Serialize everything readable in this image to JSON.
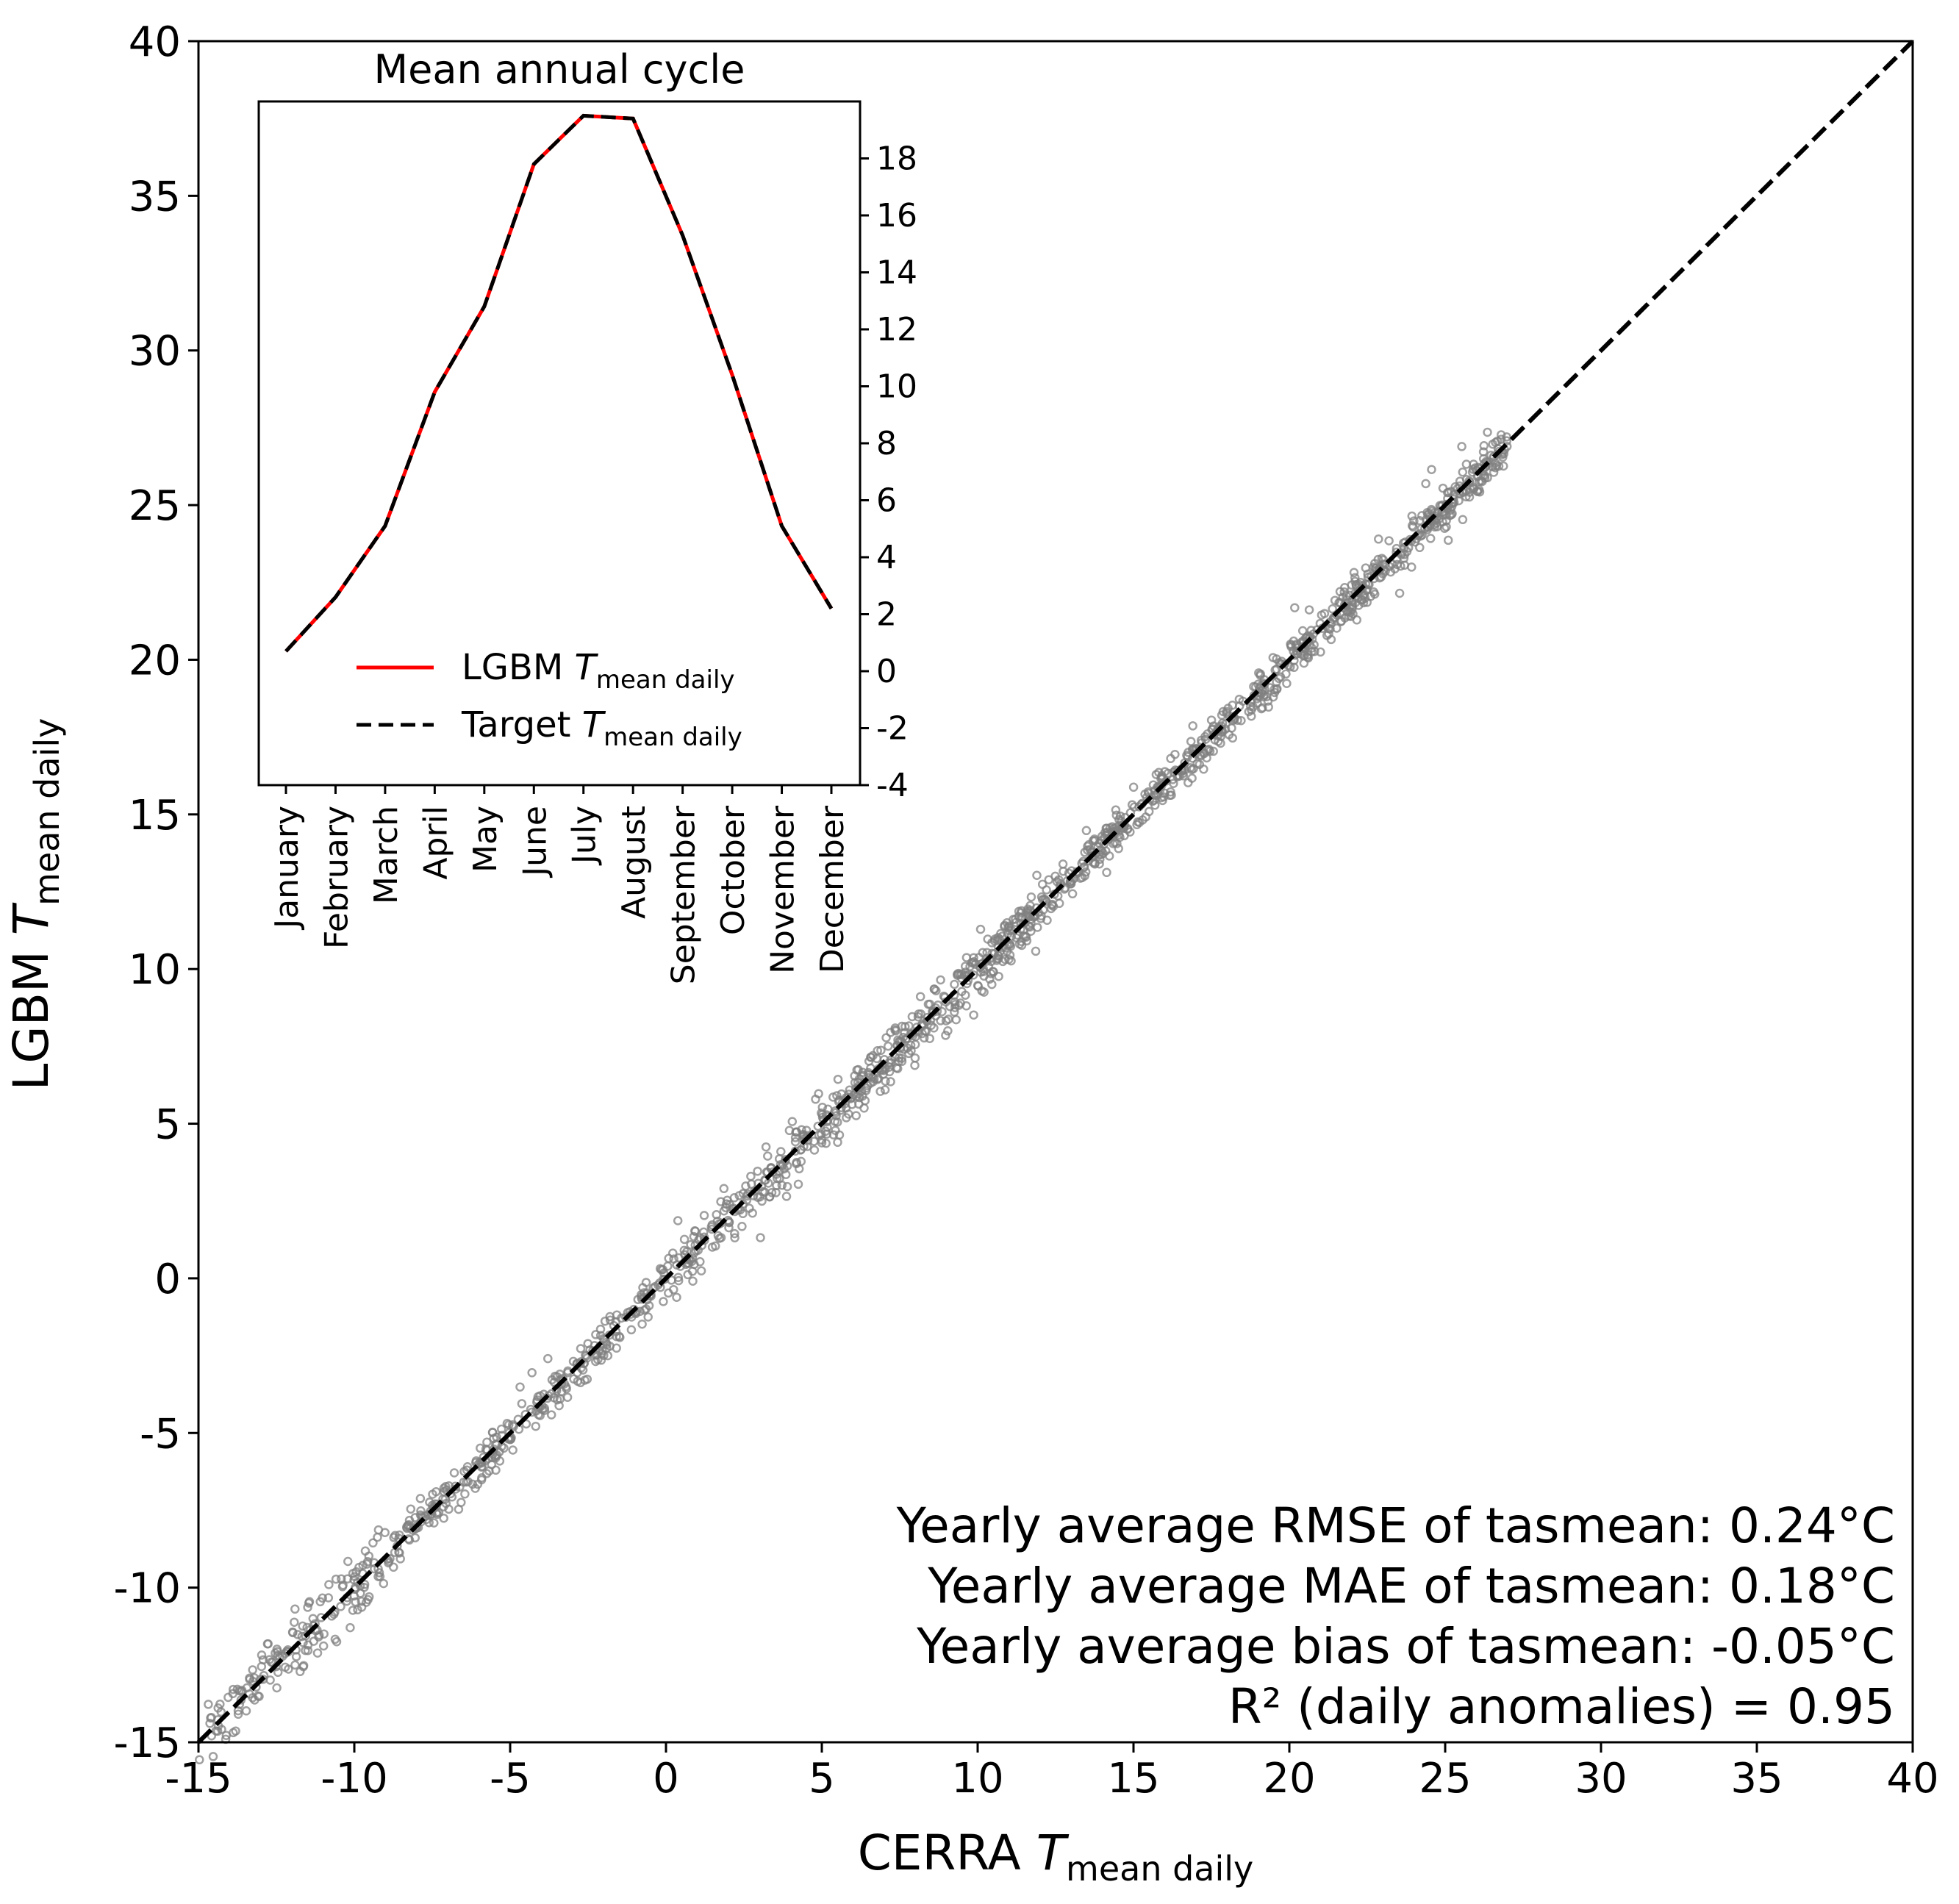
{
  "chart_data": [
    {
      "type": "scatter",
      "title": "",
      "xlabel": {
        "main": "CERRA ",
        "var": "T",
        "sub": "mean daily"
      },
      "ylabel": {
        "main": "LGBM ",
        "var": "T",
        "sub": "mean daily"
      },
      "xlim": [
        -15,
        40
      ],
      "ylim": [
        -15,
        40
      ],
      "xticks": [
        -15,
        -10,
        -5,
        0,
        5,
        10,
        15,
        20,
        25,
        30,
        35,
        40
      ],
      "yticks": [
        -15,
        -10,
        -5,
        0,
        5,
        10,
        15,
        20,
        25,
        30,
        35,
        40
      ],
      "xtick_labels": [
        "-15",
        "-10",
        "-5",
        "0",
        "5",
        "10",
        "15",
        "20",
        "25",
        "30",
        "35",
        "40"
      ],
      "ytick_labels": [
        "-15",
        "-10",
        "-5",
        "0",
        "5",
        "10",
        "15",
        "20",
        "25",
        "30",
        "35",
        "40"
      ],
      "point_color": "#808080",
      "scatter_range": [
        -15,
        27
      ],
      "points_shown": 1600,
      "identity_line": {
        "from": [
          -15,
          -15
        ],
        "to": [
          40,
          40
        ],
        "style": "dashed",
        "color": "#000000"
      },
      "annotations": [
        "Yearly average RMSE of tasmean: 0.24°C",
        "Yearly average MAE of tasmean: 0.18°C",
        "Yearly average bias of tasmean: -0.05°C",
        "R² (daily anomalies) = 0.95"
      ]
    },
    {
      "type": "line",
      "title": "Mean annual cycle",
      "categories": [
        "January",
        "February",
        "March",
        "April",
        "May",
        "June",
        "July",
        "August",
        "September",
        "October",
        "November",
        "December"
      ],
      "series": [
        {
          "name": "LGBM T mean daily",
          "color": "#ff0000",
          "style": "solid",
          "values": [
            0.7,
            2.6,
            5.1,
            9.8,
            12.8,
            17.8,
            19.5,
            19.4,
            15.3,
            10.4,
            5.1,
            2.2
          ]
        },
        {
          "name": "Target T mean daily",
          "color": "#000000",
          "style": "dashed",
          "values": [
            0.7,
            2.6,
            5.1,
            9.8,
            12.8,
            17.8,
            19.5,
            19.4,
            15.3,
            10.4,
            5.1,
            2.2
          ]
        }
      ],
      "ylim": [
        -4,
        20
      ],
      "yticks": [
        -4,
        -2,
        0,
        2,
        4,
        6,
        8,
        10,
        12,
        14,
        16,
        18
      ],
      "ytick_labels": [
        "-4",
        "-2",
        "0",
        "2",
        "4",
        "6",
        "8",
        "10",
        "12",
        "14",
        "16",
        "18"
      ],
      "yaxis_position": "right",
      "legend": {
        "location": "lower-center",
        "entries": [
          {
            "main": "LGBM ",
            "var": "T",
            "sub": "mean daily",
            "color": "#ff0000",
            "style": "solid"
          },
          {
            "main": "Target ",
            "var": "T",
            "sub": "mean daily",
            "color": "#000000",
            "style": "dashed"
          }
        ]
      }
    }
  ]
}
